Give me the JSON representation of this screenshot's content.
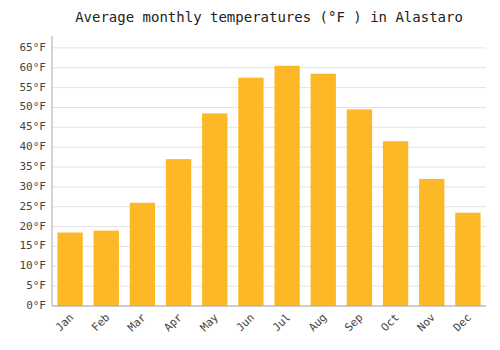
{
  "chart_data": {
    "type": "bar",
    "title": "Average monthly temperatures (°F ) in Alastaro",
    "categories": [
      "Jan",
      "Feb",
      "Mar",
      "Apr",
      "May",
      "Jun",
      "Jul",
      "Aug",
      "Sep",
      "Oct",
      "Nov",
      "Dec"
    ],
    "values": [
      18.5,
      19.0,
      26.0,
      37.0,
      48.5,
      57.5,
      60.5,
      58.5,
      49.5,
      41.5,
      32.0,
      23.5
    ],
    "color": "#FDB827",
    "ylim": [
      0,
      68
    ],
    "yticks": [
      {
        "value": 0,
        "label": "0°F"
      },
      {
        "value": 5,
        "label": "5°F"
      },
      {
        "value": 10,
        "label": "10°F"
      },
      {
        "value": 15,
        "label": "15°F"
      },
      {
        "value": 20,
        "label": "20°F"
      },
      {
        "value": 25,
        "label": "25°F"
      },
      {
        "value": 30,
        "label": "30°F"
      },
      {
        "value": 35,
        "label": "35°F"
      },
      {
        "value": 40,
        "label": "40°F"
      },
      {
        "value": 45,
        "label": "45°F"
      },
      {
        "value": 50,
        "label": "50°F"
      },
      {
        "value": 55,
        "label": "55°F"
      },
      {
        "value": 60,
        "label": "60°F"
      },
      {
        "value": 65,
        "label": "65°F"
      }
    ],
    "grid": true
  }
}
